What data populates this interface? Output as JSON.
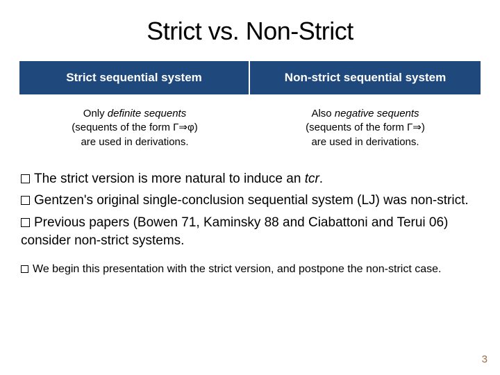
{
  "title": "Strict vs. Non-Strict",
  "table": {
    "header_bg": "#1f497d",
    "header_fg": "#ffffff",
    "left_header": "Strict sequential system",
    "right_header": "Non-strict sequential system",
    "left_body_line1_pre": "Only ",
    "left_body_line1_em": "definite sequents",
    "left_body_line2": "(sequents of the form Γ⇒φ)",
    "left_body_line3": "are used in derivations.",
    "right_body_line1_pre": "Also ",
    "right_body_line1_em": "negative sequents",
    "right_body_line2": "(sequents of the form Γ⇒)",
    "right_body_line3": "are used in derivations."
  },
  "bullets": {
    "b1_pre": "The strict version is more natural to induce an ",
    "b1_it": "tcr",
    "b1_post": ".",
    "b2": "Gentzen's original single-conclusion sequential system (LJ) was non-strict.",
    "b3": "Previous papers (Bowen 71, Kaminsky 88 and Ciabattoni and Terui 06) consider non-strict systems."
  },
  "bullets_small": {
    "s1": "We begin this presentation with the strict version, and postpone the non-strict case."
  },
  "page_number": "3",
  "fonts": {
    "title_size": 36,
    "bullet_size": 19,
    "small_bullet_size": 16,
    "table_header_size": 17,
    "table_body_size": 15
  },
  "colors": {
    "bg": "#ffffff",
    "text": "#000000",
    "page_num": "#9a6b4a"
  }
}
